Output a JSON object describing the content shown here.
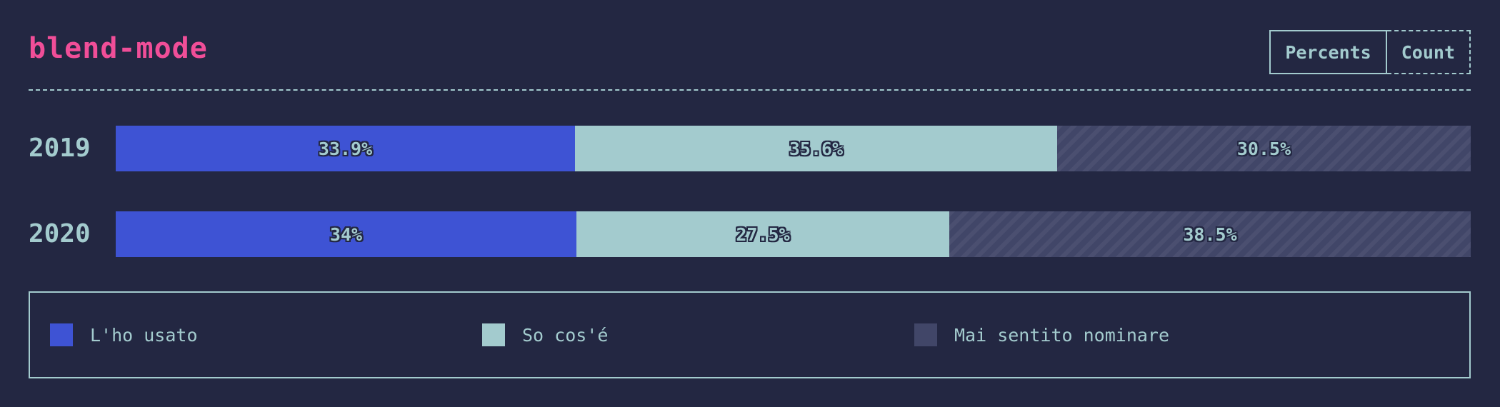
{
  "title": "blend-mode",
  "toggle": {
    "percents_label": "Percents",
    "count_label": "Count",
    "active": "Percents"
  },
  "colors": {
    "background": "#232742",
    "title": "#f04e98",
    "text": "#a3cbce",
    "used": "#3e53d4",
    "know": "#a3cbce",
    "never": "#414668"
  },
  "chart_data": {
    "type": "bar",
    "orientation": "horizontal",
    "stacked": true,
    "normalized": true,
    "categories": [
      "2019",
      "2020"
    ],
    "series": [
      {
        "name": "L'ho usato",
        "values": [
          33.9,
          34
        ],
        "labels": [
          "33.9%",
          "34%"
        ],
        "color": "#3e53d4"
      },
      {
        "name": "So cos'é",
        "values": [
          35.6,
          27.5
        ],
        "labels": [
          "35.6%",
          "27.5%"
        ],
        "color": "#a3cbce"
      },
      {
        "name": "Mai sentito nominare",
        "values": [
          30.5,
          38.5
        ],
        "labels": [
          "30.5%",
          "38.5%"
        ],
        "color": "#414668"
      }
    ],
    "legend_position": "bottom"
  }
}
